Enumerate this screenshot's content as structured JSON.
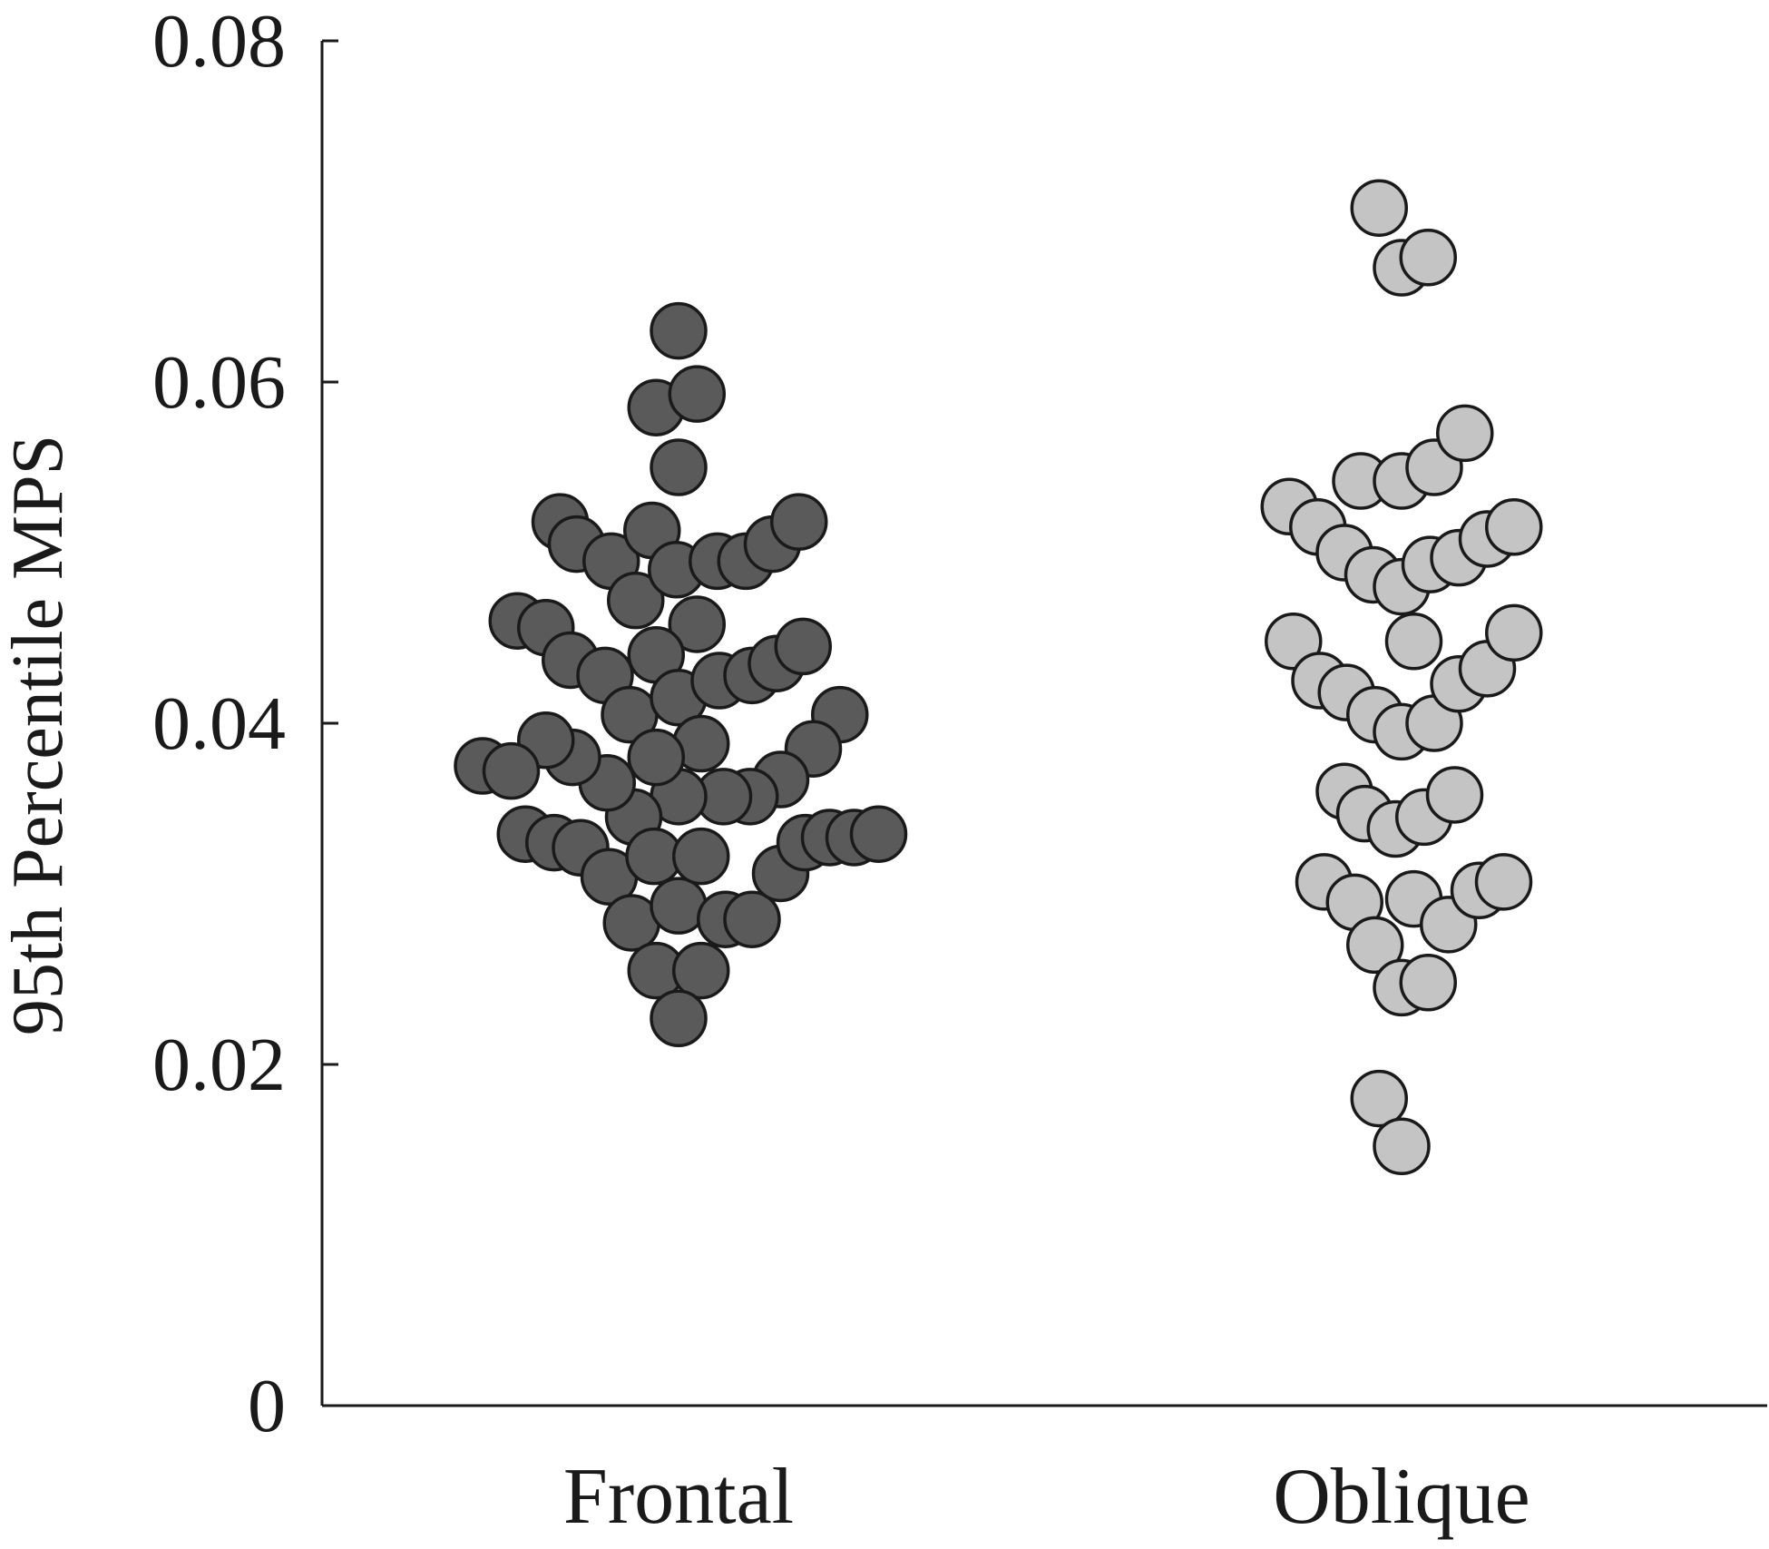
{
  "chart_data": {
    "type": "scatter",
    "title": "",
    "xlabel": "",
    "ylabel": "95th Percentile MPS",
    "ylim": [
      0,
      0.08
    ],
    "yticks": [
      0,
      0.02,
      0.04,
      0.06,
      0.08
    ],
    "ytick_labels": [
      "0",
      "0.02",
      "0.04",
      "0.06",
      "0.08"
    ],
    "categories": [
      "Frontal",
      "Oblique"
    ],
    "grid": false,
    "series": [
      {
        "category": "Frontal",
        "color": "#5a5a5a",
        "points": [
          {
            "o": 0.0,
            "y": 0.063
          },
          {
            "o": -0.55,
            "y": 0.0585
          },
          {
            "o": 0.45,
            "y": 0.0593
          },
          {
            "o": 0.0,
            "y": 0.055
          },
          {
            "o": -2.9,
            "y": 0.0518
          },
          {
            "o": -2.5,
            "y": 0.0505
          },
          {
            "o": -1.65,
            "y": 0.0495
          },
          {
            "o": -1.05,
            "y": 0.0472
          },
          {
            "o": -0.65,
            "y": 0.0513
          },
          {
            "o": -0.05,
            "y": 0.049
          },
          {
            "o": 0.95,
            "y": 0.0495
          },
          {
            "o": 1.65,
            "y": 0.0495
          },
          {
            "o": 2.3,
            "y": 0.0505
          },
          {
            "o": 2.95,
            "y": 0.0518
          },
          {
            "o": 0.45,
            "y": 0.0458
          },
          {
            "o": -3.95,
            "y": 0.046
          },
          {
            "o": -3.25,
            "y": 0.0456
          },
          {
            "o": -2.65,
            "y": 0.0437
          },
          {
            "o": -1.8,
            "y": 0.0428
          },
          {
            "o": -1.2,
            "y": 0.0405
          },
          {
            "o": -0.55,
            "y": 0.044
          },
          {
            "o": 0.0,
            "y": 0.0415
          },
          {
            "o": 1.0,
            "y": 0.0425
          },
          {
            "o": 1.8,
            "y": 0.0428
          },
          {
            "o": 2.4,
            "y": 0.0435
          },
          {
            "o": 3.05,
            "y": 0.0445
          },
          {
            "o": 3.95,
            "y": 0.0405
          },
          {
            "o": 3.3,
            "y": 0.0385
          },
          {
            "o": 2.5,
            "y": 0.0367
          },
          {
            "o": 1.75,
            "y": 0.0357
          },
          {
            "o": 1.1,
            "y": 0.0357
          },
          {
            "o": 0.55,
            "y": 0.0388
          },
          {
            "o": 0.0,
            "y": 0.0357
          },
          {
            "o": -0.55,
            "y": 0.038
          },
          {
            "o": -1.1,
            "y": 0.0345
          },
          {
            "o": -1.75,
            "y": 0.0365
          },
          {
            "o": -2.6,
            "y": 0.038
          },
          {
            "o": -3.25,
            "y": 0.039
          },
          {
            "o": -4.8,
            "y": 0.0375
          },
          {
            "o": -4.1,
            "y": 0.0372
          },
          {
            "o": -3.75,
            "y": 0.0335
          },
          {
            "o": -3.05,
            "y": 0.033
          },
          {
            "o": -2.4,
            "y": 0.0327
          },
          {
            "o": -1.7,
            "y": 0.031
          },
          {
            "o": -1.15,
            "y": 0.0283
          },
          {
            "o": -0.6,
            "y": 0.0322
          },
          {
            "o": 0.0,
            "y": 0.0293
          },
          {
            "o": 0.55,
            "y": 0.0322
          },
          {
            "o": 1.15,
            "y": 0.0285
          },
          {
            "o": 1.8,
            "y": 0.0285
          },
          {
            "o": 2.5,
            "y": 0.0312
          },
          {
            "o": 3.1,
            "y": 0.033
          },
          {
            "o": 3.7,
            "y": 0.0333
          },
          {
            "o": 4.3,
            "y": 0.0333
          },
          {
            "o": 4.9,
            "y": 0.0335
          },
          {
            "o": -0.55,
            "y": 0.0255
          },
          {
            "o": 0.55,
            "y": 0.0255
          },
          {
            "o": 0.0,
            "y": 0.0227
          }
        ]
      },
      {
        "category": "Oblique",
        "color": "#c4c4c4",
        "points": [
          {
            "o": -0.55,
            "y": 0.0702
          },
          {
            "o": 0.0,
            "y": 0.0667
          },
          {
            "o": 0.65,
            "y": 0.0673
          },
          {
            "o": -1.0,
            "y": 0.0542
          },
          {
            "o": 0.0,
            "y": 0.0542
          },
          {
            "o": 0.8,
            "y": 0.055
          },
          {
            "o": 1.55,
            "y": 0.057
          },
          {
            "o": -2.75,
            "y": 0.0527
          },
          {
            "o": -2.05,
            "y": 0.0515
          },
          {
            "o": -1.4,
            "y": 0.05
          },
          {
            "o": -0.7,
            "y": 0.0487
          },
          {
            "o": 0.0,
            "y": 0.048
          },
          {
            "o": 0.7,
            "y": 0.0493
          },
          {
            "o": 1.4,
            "y": 0.0497
          },
          {
            "o": 2.1,
            "y": 0.0508
          },
          {
            "o": 2.75,
            "y": 0.0515
          },
          {
            "o": 0.3,
            "y": 0.0448
          },
          {
            "o": -2.65,
            "y": 0.0448
          },
          {
            "o": -2.0,
            "y": 0.0425
          },
          {
            "o": -1.35,
            "y": 0.0418
          },
          {
            "o": -0.65,
            "y": 0.0405
          },
          {
            "o": 0.0,
            "y": 0.0395
          },
          {
            "o": 0.8,
            "y": 0.04
          },
          {
            "o": 1.4,
            "y": 0.0423
          },
          {
            "o": 2.1,
            "y": 0.0432
          },
          {
            "o": 2.75,
            "y": 0.0453
          },
          {
            "o": -1.4,
            "y": 0.036
          },
          {
            "o": -0.9,
            "y": 0.0347
          },
          {
            "o": -0.15,
            "y": 0.0338
          },
          {
            "o": 0.55,
            "y": 0.0345
          },
          {
            "o": 1.3,
            "y": 0.0358
          },
          {
            "o": -1.9,
            "y": 0.0307
          },
          {
            "o": -1.15,
            "y": 0.0295
          },
          {
            "o": -0.65,
            "y": 0.027
          },
          {
            "o": 0.3,
            "y": 0.0297
          },
          {
            "o": 1.15,
            "y": 0.0282
          },
          {
            "o": 1.9,
            "y": 0.0302
          },
          {
            "o": 2.5,
            "y": 0.0307
          },
          {
            "o": 0.0,
            "y": 0.0245
          },
          {
            "o": 0.65,
            "y": 0.0248
          },
          {
            "o": -0.55,
            "y": 0.018
          },
          {
            "o": 0.0,
            "y": 0.0152
          }
        ]
      }
    ]
  }
}
